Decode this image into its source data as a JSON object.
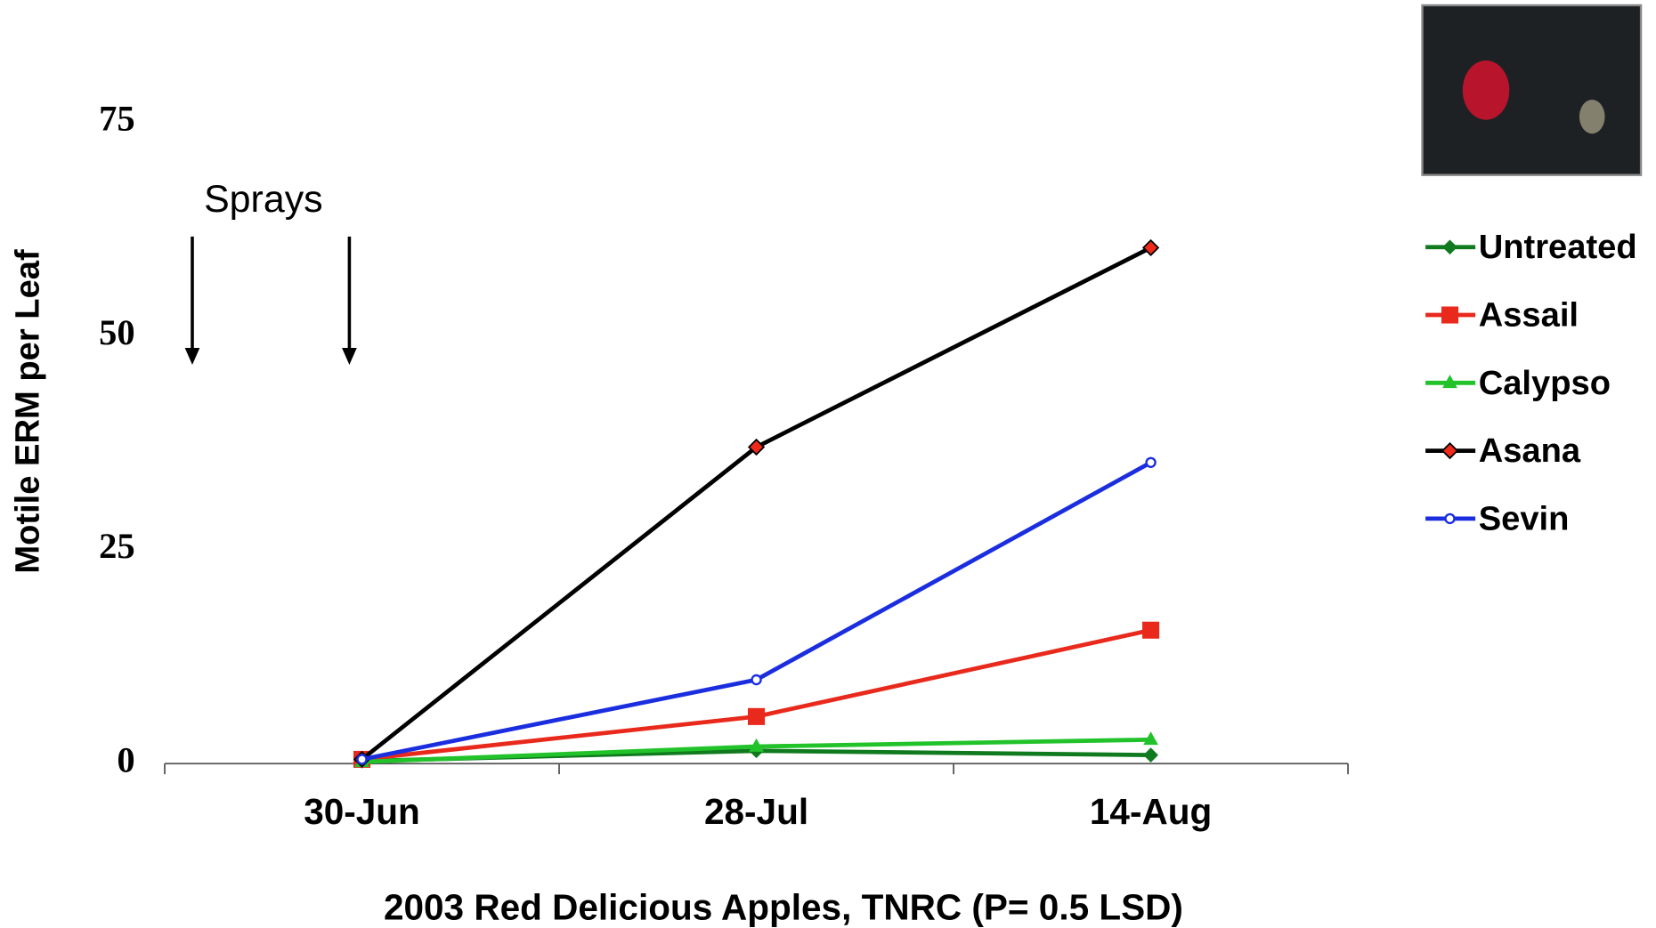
{
  "chart_data": {
    "type": "line",
    "y_label": "Motile ERM per Leaf",
    "x_label": "2003 Red Delicious Apples, TNRC  (P= 0.5 LSD)",
    "annotation": "Sprays",
    "categories": [
      "30-Jun",
      "28-Jul",
      "14-Aug"
    ],
    "ylim": [
      0,
      75
    ],
    "yticks": [
      0,
      25,
      50,
      75
    ],
    "series": [
      {
        "name": "Untreated",
        "color": "#0f7a1e",
        "marker": "diamond",
        "marker_color": "#0f7a1e",
        "values": [
          0.3,
          1.5,
          1.0
        ]
      },
      {
        "name": "Assail",
        "color": "#e8291c",
        "marker": "square",
        "marker_color": "#e8291c",
        "values": [
          0.5,
          5.5,
          15.6
        ]
      },
      {
        "name": "Calypso",
        "color": "#22c32a",
        "marker": "triangle",
        "marker_color": "#22c32a",
        "values": [
          0.2,
          2.0,
          2.8
        ]
      },
      {
        "name": "Asana",
        "color": "#000000",
        "marker": "diamond",
        "marker_color": "#ef2a1a",
        "values": [
          0.5,
          37,
          60.3
        ]
      },
      {
        "name": "Sevin",
        "color": "#1a2ee0",
        "marker": "circle",
        "marker_color": "#1a2ee0",
        "values": [
          0.5,
          9.8,
          35.2
        ]
      }
    ]
  }
}
